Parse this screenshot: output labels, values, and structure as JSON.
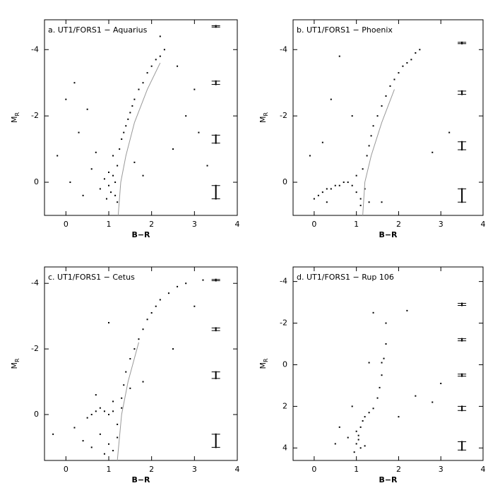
{
  "chart_data": [
    {
      "type": "scatter",
      "title": "a. UT1/FORS1 − Aquarius",
      "xlabel": "B−R",
      "ylabel": {
        "main": "M",
        "sub": "R"
      },
      "xlim": [
        -0.5,
        4
      ],
      "ylim": [
        1.0,
        -4.9
      ],
      "xticks": [
        0,
        1,
        2,
        3,
        4
      ],
      "yticks": [
        -4,
        -2,
        0
      ],
      "color": "#000000",
      "points": {
        "x": [
          1.0,
          1.05,
          1.1,
          1.15,
          1.2,
          0.95,
          1.1,
          1.25,
          1.0,
          1.3,
          1.35,
          1.4,
          1.45,
          1.5,
          1.55,
          1.6,
          1.7,
          1.8,
          1.9,
          2.0,
          2.1,
          2.2,
          2.3,
          1.2,
          1.15,
          0.9,
          0.8,
          0.6,
          0.3,
          0.1,
          -0.2,
          0.5,
          0.2,
          2.5,
          2.8,
          3.1,
          3.3,
          2.6,
          3.0,
          1.8,
          0.4,
          0.0,
          2.2,
          1.6,
          0.7
        ],
        "y": [
          0.1,
          0.3,
          -0.2,
          0.0,
          -0.5,
          0.5,
          -0.8,
          -1.0,
          -0.3,
          -1.3,
          -1.5,
          -1.7,
          -1.9,
          -2.1,
          -2.3,
          -2.5,
          -2.8,
          -3.0,
          -3.3,
          -3.5,
          -3.7,
          -3.8,
          -4.0,
          0.6,
          0.4,
          -0.1,
          0.2,
          -0.4,
          -1.5,
          0.0,
          -0.8,
          -2.2,
          -3.0,
          -1.0,
          -2.0,
          -1.5,
          -0.5,
          -3.5,
          -2.8,
          -0.2,
          0.4,
          -2.5,
          -4.4,
          -0.6,
          -0.9
        ]
      },
      "line": {
        "color": "#999999",
        "x": [
          1.22,
          1.28,
          1.4,
          1.6,
          1.9,
          2.2
        ],
        "y": [
          1.0,
          0.0,
          -0.8,
          -1.8,
          -2.8,
          -3.6
        ]
      },
      "errorbars": {
        "x": [
          3.5,
          3.5,
          3.5,
          3.5
        ],
        "y": [
          -4.7,
          -3.0,
          -1.3,
          0.3
        ],
        "yerr": [
          0.02,
          0.05,
          0.12,
          0.2
        ]
      }
    },
    {
      "type": "scatter",
      "title": "b. UT1/FORS1 − Phoenix",
      "xlabel": "B−R",
      "ylabel": {
        "main": "M",
        "sub": "R"
      },
      "xlim": [
        -0.5,
        4
      ],
      "ylim": [
        1.0,
        -4.9
      ],
      "xticks": [
        0,
        1,
        2,
        3,
        4
      ],
      "yticks": [
        -4,
        -2,
        0
      ],
      "color": "#000000",
      "points": {
        "x": [
          0.0,
          0.1,
          0.2,
          0.3,
          0.4,
          0.5,
          0.6,
          0.7,
          0.8,
          0.9,
          1.0,
          1.1,
          1.2,
          1.15,
          1.25,
          1.3,
          1.35,
          1.4,
          1.5,
          1.6,
          1.7,
          1.8,
          1.9,
          2.0,
          2.1,
          2.2,
          2.3,
          2.4,
          2.5,
          1.1,
          1.3,
          1.0,
          0.2,
          -0.1,
          0.4,
          0.6,
          2.8,
          3.2,
          0.9,
          1.6,
          0.3
        ],
        "y": [
          0.5,
          0.4,
          0.3,
          0.2,
          0.2,
          0.1,
          0.1,
          0.0,
          0.0,
          0.1,
          0.3,
          0.5,
          0.2,
          -0.4,
          -0.8,
          -1.1,
          -1.4,
          -1.7,
          -2.0,
          -2.3,
          -2.6,
          -2.9,
          -3.1,
          -3.3,
          -3.5,
          -3.6,
          -3.7,
          -3.9,
          -4.0,
          0.7,
          0.6,
          -0.2,
          -1.2,
          -0.8,
          -2.5,
          -3.8,
          -0.9,
          -1.5,
          -2.0,
          0.6,
          0.6
        ]
      },
      "line": {
        "color": "#999999",
        "x": [
          1.15,
          1.2,
          1.35,
          1.6,
          1.9
        ],
        "y": [
          1.0,
          0.0,
          -0.8,
          -1.8,
          -2.8
        ]
      },
      "errorbars": {
        "x": [
          3.5,
          3.5,
          3.5,
          3.5
        ],
        "y": [
          -4.2,
          -2.7,
          -1.1,
          0.4
        ],
        "yerr": [
          0.02,
          0.05,
          0.12,
          0.2
        ]
      }
    },
    {
      "type": "scatter",
      "title": "c. UT1/FORS1 − Cetus",
      "xlabel": "B−R",
      "ylabel": {
        "main": "M",
        "sub": "R"
      },
      "xlim": [
        -0.5,
        4
      ],
      "ylim": [
        1.4,
        -4.5
      ],
      "xticks": [
        0,
        1,
        2,
        3,
        4
      ],
      "yticks": [
        -4,
        -2,
        0
      ],
      "color": "#000000",
      "points": {
        "x": [
          0.5,
          0.6,
          0.7,
          0.8,
          0.9,
          1.0,
          1.1,
          1.2,
          0.8,
          1.0,
          1.1,
          1.2,
          1.3,
          1.35,
          1.4,
          1.5,
          1.6,
          1.7,
          1.8,
          1.9,
          2.0,
          2.1,
          2.2,
          2.4,
          2.6,
          2.8,
          0.4,
          0.6,
          0.9,
          1.1,
          1.3,
          1.5,
          0.2,
          -0.3,
          1.8,
          2.5,
          3.0,
          3.2,
          1.0,
          0.7
        ],
        "y": [
          0.1,
          0.0,
          -0.1,
          -0.2,
          -0.1,
          0.0,
          -0.1,
          0.3,
          0.6,
          0.9,
          1.1,
          0.7,
          -0.5,
          -0.9,
          -1.3,
          -1.7,
          -2.0,
          -2.3,
          -2.6,
          -2.9,
          -3.1,
          -3.3,
          -3.5,
          -3.7,
          -3.9,
          -4.0,
          0.8,
          1.0,
          1.2,
          -0.4,
          -0.2,
          -0.8,
          0.4,
          0.6,
          -1.0,
          -2.0,
          -3.3,
          -4.1,
          -2.8,
          -0.6
        ]
      },
      "line": {
        "color": "#999999",
        "x": [
          1.2,
          1.3,
          1.45,
          1.7
        ],
        "y": [
          1.4,
          0.0,
          -1.0,
          -2.2
        ]
      },
      "errorbars": {
        "x": [
          3.5,
          3.5,
          3.5,
          3.5
        ],
        "y": [
          -4.1,
          -2.6,
          -1.2,
          0.8
        ],
        "yerr": [
          0.02,
          0.04,
          0.1,
          0.2
        ]
      }
    },
    {
      "type": "scatter",
      "title": "d. UT1/FORS1 − Rup 106",
      "xlabel": "B−R",
      "ylabel": {
        "main": "M",
        "sub": "R"
      },
      "xlim": [
        -0.5,
        4
      ],
      "ylim": [
        4.6,
        -4.7
      ],
      "xticks": [
        0,
        1,
        2,
        3,
        4
      ],
      "yticks": [
        -4,
        -2,
        0,
        2,
        4
      ],
      "color": "#000000",
      "points": {
        "x": [
          1.0,
          1.05,
          1.1,
          1.0,
          1.05,
          1.1,
          1.15,
          1.2,
          1.3,
          1.4,
          1.5,
          1.55,
          1.6,
          1.65,
          1.7,
          1.2,
          0.9,
          0.8,
          0.6,
          2.0,
          2.4,
          2.8,
          3.0,
          1.7,
          2.2,
          0.5,
          1.6,
          1.3,
          1.4,
          0.95
        ],
        "y": [
          3.2,
          3.6,
          4.0,
          3.8,
          3.4,
          3.0,
          2.7,
          2.5,
          2.3,
          2.1,
          1.6,
          1.1,
          0.5,
          -0.3,
          -1.0,
          3.9,
          2.0,
          3.5,
          3.0,
          2.5,
          1.5,
          1.8,
          0.9,
          -2.0,
          -2.6,
          3.8,
          -0.1,
          -0.1,
          -2.5,
          4.2
        ]
      },
      "errorbars": {
        "x": [
          3.5,
          3.5,
          3.5,
          3.5,
          3.5
        ],
        "y": [
          -2.9,
          -1.2,
          0.5,
          2.1,
          3.9
        ],
        "yerr": [
          0.05,
          0.05,
          0.05,
          0.1,
          0.2
        ]
      }
    }
  ]
}
